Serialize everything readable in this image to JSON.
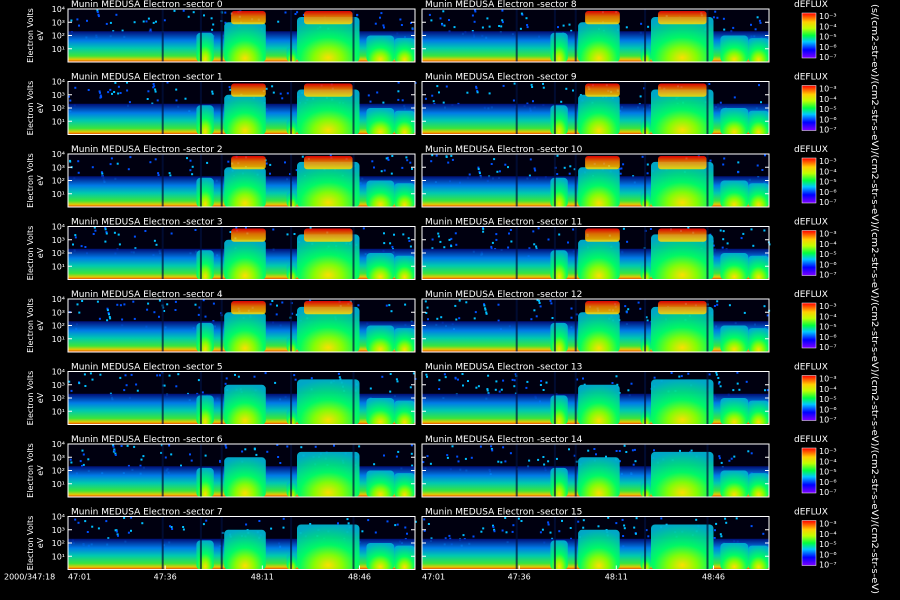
{
  "chart_data": {
    "type": "heatmap",
    "instrument": "Munin MEDUSA Electron",
    "panels": [
      {
        "title": "Munin MEDUSA Electron -sector 0",
        "sector": 0
      },
      {
        "title": "Munin MEDUSA Electron -sector 1",
        "sector": 1
      },
      {
        "title": "Munin MEDUSA Electron -sector 2",
        "sector": 2
      },
      {
        "title": "Munin MEDUSA Electron -sector 3",
        "sector": 3
      },
      {
        "title": "Munin MEDUSA Electron -sector 4",
        "sector": 4
      },
      {
        "title": "Munin MEDUSA Electron -sector 5",
        "sector": 5
      },
      {
        "title": "Munin MEDUSA Electron -sector 6",
        "sector": 6
      },
      {
        "title": "Munin MEDUSA Electron -sector 7",
        "sector": 7
      },
      {
        "title": "Munin MEDUSA Electron -sector 8",
        "sector": 8
      },
      {
        "title": "Munin MEDUSA Electron -sector 9",
        "sector": 9
      },
      {
        "title": "Munin MEDUSA Electron -sector 10",
        "sector": 10
      },
      {
        "title": "Munin MEDUSA Electron -sector 11",
        "sector": 11
      },
      {
        "title": "Munin MEDUSA Electron -sector 12",
        "sector": 12
      },
      {
        "title": "Munin MEDUSA Electron -sector 13",
        "sector": 13
      },
      {
        "title": "Munin MEDUSA Electron -sector 14",
        "sector": 14
      },
      {
        "title": "Munin MEDUSA Electron -sector 15",
        "sector": 15
      }
    ],
    "ylabel": "Electron Volts",
    "yunit": "eV",
    "yscale": "log",
    "yticks": [
      "10¹",
      "10²",
      "10³",
      "10⁴"
    ],
    "ylim": [
      1,
      10000
    ],
    "date_label": "2000/347:18",
    "xticks": [
      "47:01",
      "47:36",
      "48:11",
      "48:46"
    ],
    "colorbar": {
      "title": "dEFLUX",
      "ticks": [
        "10⁻³",
        "10⁻⁴",
        "10⁻⁵",
        "10⁻⁶",
        "10⁻⁷"
      ],
      "unit": "(s/(cm2-str-ev)/(cm2-str-s-eV)/(cm2-str-s-eV)/(cm2-str-s-eV)/(cm2-str-s-eV)/(cm2-str-s-eV)/(cm2-str-s-eV)/(cm2-str-s-eV)",
      "scale": "log"
    },
    "grid": false,
    "layout": "8 rows x 2 columns (sectors 0-7 left, 8-15 right)"
  }
}
